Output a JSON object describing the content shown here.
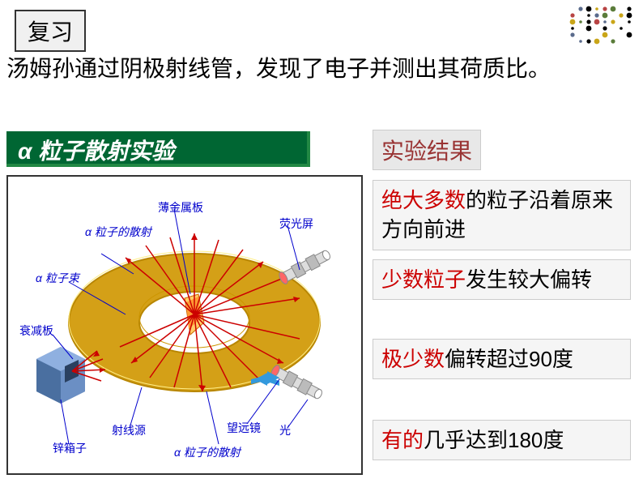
{
  "corner_dots": {
    "colors": [
      "#5b7c3a",
      "#c9a518",
      "#5a6b8c",
      "#b84444",
      "#000000"
    ],
    "rows": 6,
    "cols": 8
  },
  "review_label": "复习",
  "main_text": "汤姆孙通过阴极射线管，发现了电子并测出其荷质比。",
  "alpha_title": "α 粒子散射实验",
  "result_title": "实验结果",
  "results": [
    {
      "highlight": "绝大多数",
      "rest": "的粒子沿着原来方向前进"
    },
    {
      "highlight": "少数粒子",
      "rest": "发生较大偏转"
    },
    {
      "highlight": "极少数",
      "rest": "偏转超过90度"
    },
    {
      "highlight": "有的",
      "rest": "几乎达到180度"
    }
  ],
  "diagram": {
    "ring_outer_color": "#d4a017",
    "ring_inner_color": "#ffffff",
    "ring_stroke": "#b88600",
    "box_color": "#6b8fc4",
    "box_shadow": "#4a6fa0",
    "ray_color": "#cc0000",
    "arrow_color": "#003399",
    "blue_arrow": "#3399dd",
    "labels": {
      "thin_metal": "薄金属板",
      "alpha_scatter": "α 粒子的散射",
      "alpha_beam": "α 粒子束",
      "attenuator": "衰减板",
      "zinc_box": "锌箱子",
      "ray_source": "射线源",
      "alpha_scatter2": "α 粒子的散射",
      "telescope": "望远镜",
      "light": "光",
      "fluorescent": "荧光屏"
    }
  }
}
